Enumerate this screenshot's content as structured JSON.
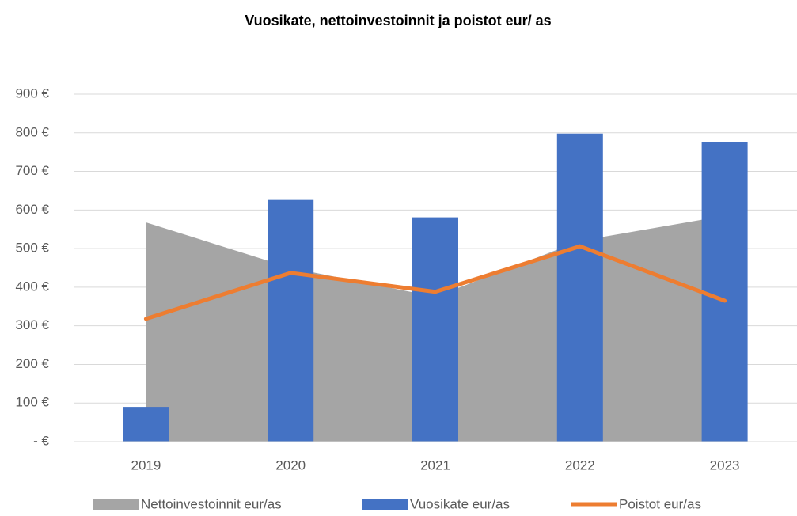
{
  "chart_data": {
    "type": "combo",
    "title": "Vuosikate, nettoinvestoinnit ja poistot eur/ as",
    "categories": [
      "2019",
      "2020",
      "2021",
      "2022",
      "2023"
    ],
    "series": [
      {
        "name": "Nettoinvestoinnit eur/as",
        "type": "area",
        "color": "#a5a5a5",
        "values": [
          568,
          450,
          375,
          520,
          585
        ]
      },
      {
        "name": "Vuosikate eur/as",
        "type": "bar",
        "color": "#4472c4",
        "values": [
          90,
          626,
          581,
          798,
          776
        ]
      },
      {
        "name": "Poistot eur/as",
        "type": "line",
        "color": "#ed7d31",
        "values": [
          318,
          437,
          388,
          506,
          365
        ]
      }
    ],
    "ylim": [
      0,
      900
    ],
    "yticks": [
      {
        "value": 0,
        "label": "-   €"
      },
      {
        "value": 100,
        "label": "100 €"
      },
      {
        "value": 200,
        "label": "200 €"
      },
      {
        "value": 300,
        "label": "300 €"
      },
      {
        "value": 400,
        "label": "400 €"
      },
      {
        "value": 500,
        "label": "500 €"
      },
      {
        "value": 600,
        "label": "600 €"
      },
      {
        "value": 700,
        "label": "700 €"
      },
      {
        "value": 800,
        "label": "800 €"
      },
      {
        "value": 900,
        "label": "900 €"
      }
    ],
    "grid": true,
    "legend": "bottom"
  }
}
